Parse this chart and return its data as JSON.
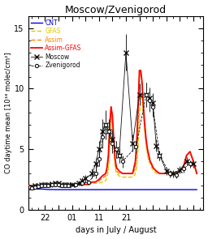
{
  "title": "Moscow/Zvenigorod",
  "xlabel": "days in July / August",
  "ylabel": "CO daytime mean [10¹⁸ molec/cm²]",
  "xlim": [
    19.5,
    45.5
  ],
  "ylim": [
    0,
    16
  ],
  "yticks": [
    0,
    5,
    10,
    15
  ],
  "xtick_positions": [
    22,
    24,
    26,
    28,
    30,
    32,
    34,
    36,
    38,
    40,
    42,
    44
  ],
  "xtick_labels": [
    "22",
    "",
    "01",
    "",
    "11",
    "",
    "21",
    "",
    "",
    "",
    "",
    ""
  ],
  "cnt_color": "#0000dd",
  "gfas_color": "#ddcc00",
  "assim_color": "#ff8800",
  "assim_gfas_color": "#ff0000",
  "days": [
    19.5,
    20.0,
    20.5,
    21.0,
    21.5,
    22.0,
    22.5,
    23.0,
    23.5,
    24.0,
    24.5,
    25.0,
    25.5,
    26.0,
    26.5,
    27.0,
    27.5,
    28.0,
    28.5,
    29.0,
    29.5,
    30.0,
    30.5,
    31.0,
    31.2,
    31.4,
    31.6,
    31.8,
    32.0,
    32.2,
    32.4,
    32.6,
    33.0,
    33.5,
    34.0,
    34.5,
    35.0,
    35.2,
    35.4,
    35.6,
    35.8,
    36.0,
    36.2,
    36.4,
    36.6,
    36.8,
    37.0,
    37.2,
    37.4,
    37.6,
    37.8,
    38.0,
    38.5,
    39.0,
    39.5,
    40.0,
    40.5,
    41.0,
    41.5,
    42.0,
    42.5,
    43.0,
    43.5,
    44.0,
    44.5
  ],
  "cnt": [
    1.7,
    1.7,
    1.72,
    1.72,
    1.72,
    1.7,
    1.68,
    1.68,
    1.67,
    1.67,
    1.67,
    1.67,
    1.67,
    1.67,
    1.67,
    1.67,
    1.67,
    1.67,
    1.67,
    1.67,
    1.67,
    1.67,
    1.67,
    1.67,
    1.67,
    1.67,
    1.67,
    1.67,
    1.67,
    1.67,
    1.67,
    1.67,
    1.67,
    1.67,
    1.67,
    1.67,
    1.67,
    1.67,
    1.67,
    1.67,
    1.67,
    1.67,
    1.67,
    1.67,
    1.67,
    1.67,
    1.67,
    1.67,
    1.67,
    1.67,
    1.67,
    1.67,
    1.67,
    1.67,
    1.67,
    1.67,
    1.67,
    1.67,
    1.67,
    1.67,
    1.67,
    1.67,
    1.67,
    1.67,
    1.67
  ],
  "gfas": [
    2.0,
    2.0,
    2.0,
    2.0,
    2.0,
    2.0,
    2.0,
    2.1,
    2.1,
    2.1,
    2.0,
    2.0,
    2.0,
    2.1,
    2.1,
    2.1,
    2.1,
    2.1,
    2.1,
    2.2,
    2.2,
    2.2,
    2.3,
    2.4,
    2.7,
    3.2,
    5.5,
    8.0,
    7.0,
    5.0,
    3.5,
    3.0,
    2.8,
    2.7,
    2.7,
    2.7,
    2.7,
    2.8,
    3.0,
    3.5,
    5.0,
    7.5,
    9.5,
    9.0,
    8.0,
    6.5,
    5.5,
    4.5,
    4.0,
    3.8,
    3.5,
    3.3,
    3.0,
    3.0,
    3.0,
    3.0,
    3.0,
    3.1,
    3.1,
    3.3,
    3.5,
    4.5,
    4.8,
    4.0,
    3.0
  ],
  "assim": [
    2.0,
    2.0,
    2.0,
    2.0,
    2.0,
    2.0,
    2.0,
    2.1,
    2.1,
    2.1,
    2.0,
    2.0,
    2.0,
    2.1,
    2.1,
    2.1,
    2.1,
    2.1,
    2.1,
    2.3,
    2.3,
    2.4,
    2.6,
    2.8,
    3.2,
    4.0,
    6.5,
    8.5,
    7.5,
    5.5,
    4.0,
    3.2,
    3.0,
    3.0,
    3.0,
    3.0,
    3.0,
    3.2,
    3.5,
    4.5,
    7.0,
    11.0,
    11.5,
    10.0,
    8.0,
    6.5,
    5.5,
    4.8,
    4.2,
    4.0,
    3.7,
    3.5,
    3.2,
    3.0,
    3.0,
    3.0,
    3.0,
    3.0,
    3.0,
    3.2,
    3.5,
    4.5,
    4.8,
    4.0,
    3.0
  ],
  "assim_gfas": [
    2.0,
    2.0,
    2.0,
    2.0,
    2.0,
    2.0,
    2.0,
    2.1,
    2.1,
    2.1,
    2.0,
    2.0,
    2.0,
    2.1,
    2.1,
    2.1,
    2.1,
    2.1,
    2.1,
    2.3,
    2.3,
    2.5,
    2.8,
    3.0,
    3.5,
    4.5,
    7.0,
    8.5,
    7.8,
    5.8,
    4.2,
    3.5,
    3.2,
    3.0,
    3.0,
    3.0,
    3.0,
    3.5,
    4.0,
    5.5,
    8.5,
    11.5,
    11.5,
    10.5,
    8.5,
    7.0,
    5.8,
    5.0,
    4.5,
    4.0,
    3.8,
    3.5,
    3.2,
    3.0,
    3.0,
    3.0,
    3.0,
    3.0,
    3.0,
    3.2,
    3.5,
    4.5,
    4.8,
    4.0,
    3.0
  ],
  "moscow_x": [
    20.0,
    20.5,
    21.0,
    21.5,
    22.0,
    22.5,
    23.0,
    23.5,
    24.0,
    24.5,
    25.0,
    25.5,
    26.0,
    27.0,
    27.5,
    28.0,
    29.0,
    29.5,
    30.0,
    30.5,
    31.0,
    31.5,
    32.0,
    32.5,
    33.0,
    34.0,
    35.0,
    36.0,
    37.0,
    37.5,
    38.0,
    38.5,
    39.0,
    40.0,
    41.0,
    42.0,
    43.0,
    44.0
  ],
  "moscow_y": [
    1.9,
    2.0,
    2.0,
    2.1,
    2.1,
    2.1,
    2.15,
    2.2,
    2.2,
    2.1,
    2.1,
    2.1,
    2.1,
    2.2,
    2.4,
    2.6,
    3.0,
    3.8,
    5.0,
    6.5,
    7.0,
    6.5,
    5.8,
    5.0,
    4.5,
    13.0,
    5.5,
    9.5,
    9.5,
    9.2,
    8.8,
    5.3,
    4.5,
    3.2,
    3.0,
    3.3,
    4.0,
    3.8
  ],
  "moscow_err": [
    0.15,
    0.15,
    0.15,
    0.15,
    0.15,
    0.15,
    0.15,
    0.15,
    0.15,
    0.15,
    0.15,
    0.15,
    0.15,
    0.2,
    0.25,
    0.3,
    0.4,
    0.5,
    0.7,
    1.0,
    1.2,
    1.0,
    0.8,
    0.7,
    0.6,
    1.5,
    0.7,
    0.9,
    1.0,
    0.9,
    0.8,
    0.5,
    0.4,
    0.3,
    0.3,
    0.3,
    0.35,
    0.3
  ],
  "zvenigorod_x": [
    20.0,
    20.5,
    21.0,
    21.5,
    22.0,
    22.5,
    23.0,
    23.5,
    24.0,
    24.5,
    25.0,
    25.5,
    26.5,
    27.5,
    28.5,
    29.5,
    30.0,
    30.5,
    31.0,
    31.5,
    32.0,
    32.5,
    33.0,
    33.5,
    35.5,
    37.0,
    37.5,
    38.0,
    39.0,
    40.5,
    41.5,
    42.5,
    43.5
  ],
  "zvenigorod_y": [
    1.8,
    1.9,
    1.95,
    2.0,
    2.0,
    2.0,
    2.05,
    2.1,
    2.1,
    2.0,
    2.0,
    2.0,
    2.1,
    2.2,
    2.3,
    3.0,
    4.2,
    6.0,
    7.0,
    6.5,
    5.5,
    5.0,
    4.5,
    4.0,
    5.2,
    9.5,
    9.0,
    8.5,
    4.5,
    3.0,
    2.9,
    3.4,
    3.8
  ],
  "zvenigorod_err": [
    0.15,
    0.15,
    0.15,
    0.15,
    0.15,
    0.15,
    0.15,
    0.15,
    0.15,
    0.15,
    0.15,
    0.15,
    0.15,
    0.2,
    0.2,
    0.4,
    0.6,
    0.9,
    1.1,
    0.9,
    0.8,
    0.7,
    0.6,
    0.5,
    0.5,
    1.0,
    0.9,
    0.8,
    0.4,
    0.3,
    0.3,
    0.3,
    0.3
  ]
}
